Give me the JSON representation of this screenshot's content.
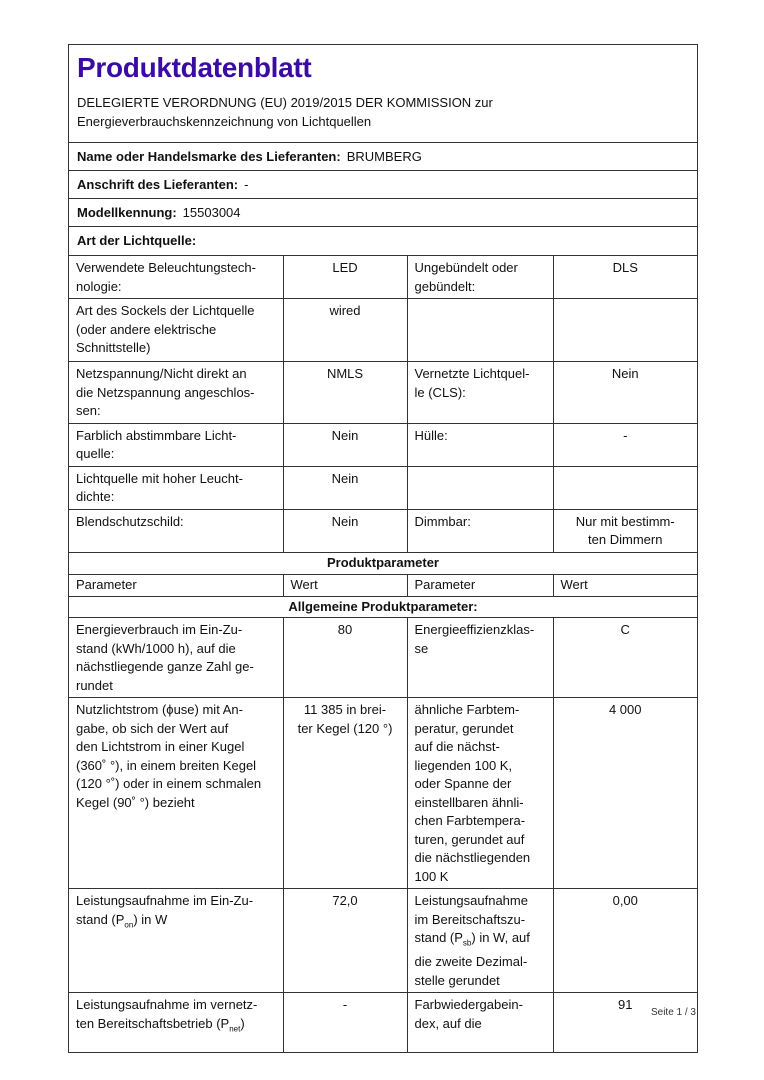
{
  "title": "Produktdatenblatt",
  "subtitle_line1": "DELEGIERTE VERORDNUNG (EU) 2019/2015 DER KOMMISSION zur",
  "subtitle_line2": "Energieverbrauchskennzeichnung von Lichtquellen",
  "supplier": {
    "label": "Name oder Handelsmarke des Lieferanten:",
    "value": "BRUMBERG"
  },
  "address": {
    "label": "Anschrift des Lieferanten:",
    "value": "-"
  },
  "model": {
    "label": "Modellkennung:",
    "value": "15503004"
  },
  "type_heading": "Art der Lichtquelle:",
  "type_rows": [
    [
      "Verwendete Beleuchtungstech-\nnologie:",
      "LED",
      "Ungebündelt oder\ngebündelt:",
      "DLS"
    ],
    [
      "Art des Sockels der Lichtquelle\n(oder andere elektrische\nSchnittstelle)",
      "wired",
      "",
      ""
    ],
    [
      "Netzspannung/Nicht direkt an\ndie Netzspannung angeschlos-\nsen:",
      "NMLS",
      "Vernetzte Lichtquel-\nle (CLS):",
      "Nein"
    ],
    [
      "Farblich abstimmbare Licht-\nquelle:",
      "Nein",
      "Hülle:",
      "-"
    ],
    [
      "Lichtquelle mit hoher Leucht-\ndichte:",
      "Nein",
      "",
      ""
    ],
    [
      "Blendschutzschild:",
      "Nein",
      "Dimmbar:",
      "Nur mit bestimm-\nten Dimmern"
    ]
  ],
  "product_params_heading": "Produktparameter",
  "col_headers": [
    "Parameter",
    "Wert",
    "Parameter",
    "Wert"
  ],
  "general_heading": "Allgemeine Produktparameter:",
  "param_rows": [
    [
      "Energieverbrauch im Ein-Zu-\nstand (kWh/1000 h), auf die\nnächstliegende ganze Zahl ge-\nrundet",
      "80",
      "Energieeffizienzklas-\nse",
      "C"
    ],
    [
      "Nutzlichtstrom (ϕuse) mit An-\ngabe, ob sich der Wert auf\nden Lichtstrom in einer Kugel\n(360˚ °), in einem breiten Kegel\n(120 °˚) oder in einem schmalen\nKegel (90˚ °) bezieht",
      "11 385 in brei-\nter Kegel (120 °)",
      "ähnliche Farbtem-\nperatur, gerundet\nauf die nächst-\nliegenden 100 K,\noder Spanne der\neinstellbaren ähnli-\nchen Farbtempera-\nturen, gerundet auf\ndie nächstliegenden\n100 K",
      "4 000"
    ],
    [
      "Leistungsaufnahme im Ein-Zu-\nstand (Pon) in W",
      "72,0",
      "Leistungsaufnahme\nim Bereitschaftszu-\nstand (Psb) in W, auf\ndie zweite Dezimal-\nstelle gerundet",
      "0,00"
    ],
    [
      "Leistungsaufnahme im vernetz-\nten Bereitschaftsbetrieb (Pnet)",
      "-",
      "Farbwiedergabein-\ndex, auf die",
      "91"
    ]
  ],
  "page_label": "Seite 1 / 3"
}
